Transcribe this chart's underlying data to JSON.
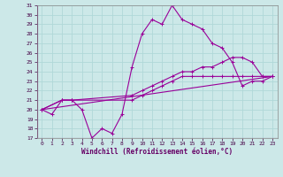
{
  "xlabel": "Windchill (Refroidissement éolien,°C)",
  "xlim": [
    -0.5,
    23.5
  ],
  "ylim": [
    17,
    31
  ],
  "yticks": [
    17,
    18,
    19,
    20,
    21,
    22,
    23,
    24,
    25,
    26,
    27,
    28,
    29,
    30,
    31
  ],
  "xticks": [
    0,
    1,
    2,
    3,
    4,
    5,
    6,
    7,
    8,
    9,
    10,
    11,
    12,
    13,
    14,
    15,
    16,
    17,
    18,
    19,
    20,
    21,
    22,
    23
  ],
  "bg_color": "#cce8e8",
  "line_color": "#990099",
  "grid_color": "#b0d8d8",
  "line1_x": [
    0,
    1,
    2,
    3,
    4,
    5,
    6,
    7,
    8,
    9,
    10,
    11,
    12,
    13,
    14,
    15,
    16,
    17,
    18,
    19,
    20,
    21,
    22,
    23
  ],
  "line1_y": [
    20.0,
    19.5,
    21.0,
    21.0,
    20.0,
    17.0,
    18.0,
    17.5,
    19.5,
    24.5,
    28.0,
    29.5,
    29.0,
    31.0,
    29.5,
    29.0,
    28.5,
    27.0,
    26.5,
    25.0,
    22.5,
    23.0,
    23.0,
    23.5
  ],
  "line2_x": [
    0,
    2,
    3,
    9,
    10,
    11,
    12,
    13,
    14,
    15,
    16,
    17,
    18,
    19,
    20,
    21,
    22,
    23
  ],
  "line2_y": [
    20.0,
    21.0,
    21.0,
    21.5,
    22.0,
    22.5,
    23.0,
    23.5,
    24.0,
    24.0,
    24.5,
    24.5,
    25.0,
    25.5,
    25.5,
    25.0,
    23.5,
    23.5
  ],
  "line3_x": [
    0,
    2,
    3,
    9,
    10,
    11,
    12,
    13,
    14,
    15,
    16,
    17,
    18,
    19,
    20,
    21,
    22,
    23
  ],
  "line3_y": [
    20.0,
    21.0,
    21.0,
    21.0,
    21.5,
    22.0,
    22.5,
    23.0,
    23.5,
    23.5,
    23.5,
    23.5,
    23.5,
    23.5,
    23.5,
    23.5,
    23.5,
    23.5
  ],
  "line4_x": [
    0,
    23
  ],
  "line4_y": [
    20.0,
    23.5
  ]
}
